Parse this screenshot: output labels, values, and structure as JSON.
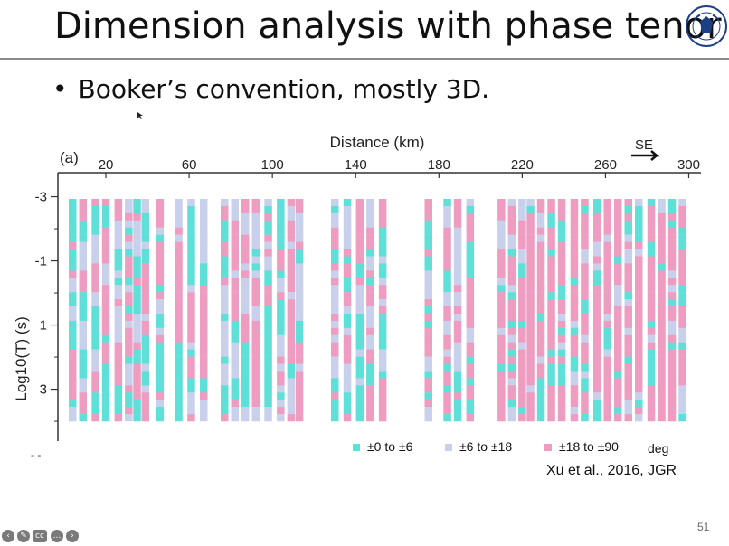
{
  "slide": {
    "title": "Dimension analysis with phase tenor",
    "bullet": "Booker’s convention, mostly 3D.",
    "citation": "Xu et al., 2016, JGR",
    "page_number": "51",
    "controls": [
      "prev-icon",
      "pen-icon",
      "cc-icon",
      "more-icon",
      "next-icon"
    ],
    "dash_marks": "- -"
  },
  "chart_data": {
    "type": "heatmap",
    "panel_label": "(a)",
    "xlabel": "Distance (km)",
    "ylabel": "Log10(T) (s)",
    "direction_label": "SE",
    "x_ticks": [
      "20",
      "60",
      "100",
      "140",
      "180",
      "220",
      "260",
      "300"
    ],
    "y_ticks": [
      "-3",
      "-1",
      "1",
      "3"
    ],
    "xlim": [
      0,
      305
    ],
    "ylim": [
      -3.1,
      4.9
    ],
    "legend_unit": "deg",
    "legend": [
      {
        "label": "±0 to ±6",
        "color": "#5ee0d8"
      },
      {
        "label": "±6 to ±18",
        "color": "#c8d0ec"
      },
      {
        "label": "±18 to ±90",
        "color": "#ee9cc0"
      }
    ],
    "stations_km": [
      4,
      9,
      15,
      20,
      26,
      31,
      35,
      39,
      46,
      55,
      61,
      67,
      77,
      82,
      87,
      92,
      98,
      104,
      109,
      113,
      130,
      136,
      142,
      147,
      153,
      175,
      184,
      189,
      195,
      210,
      215,
      220,
      224,
      229,
      234,
      239,
      245,
      250,
      256,
      261,
      266,
      271,
      276,
      282,
      287,
      292,
      297
    ],
    "period_range_log10": [
      -2.6,
      4.6
    ],
    "rows_per_station": 31,
    "note_values": "cell colours are estimated phase-tensor skew classes"
  }
}
